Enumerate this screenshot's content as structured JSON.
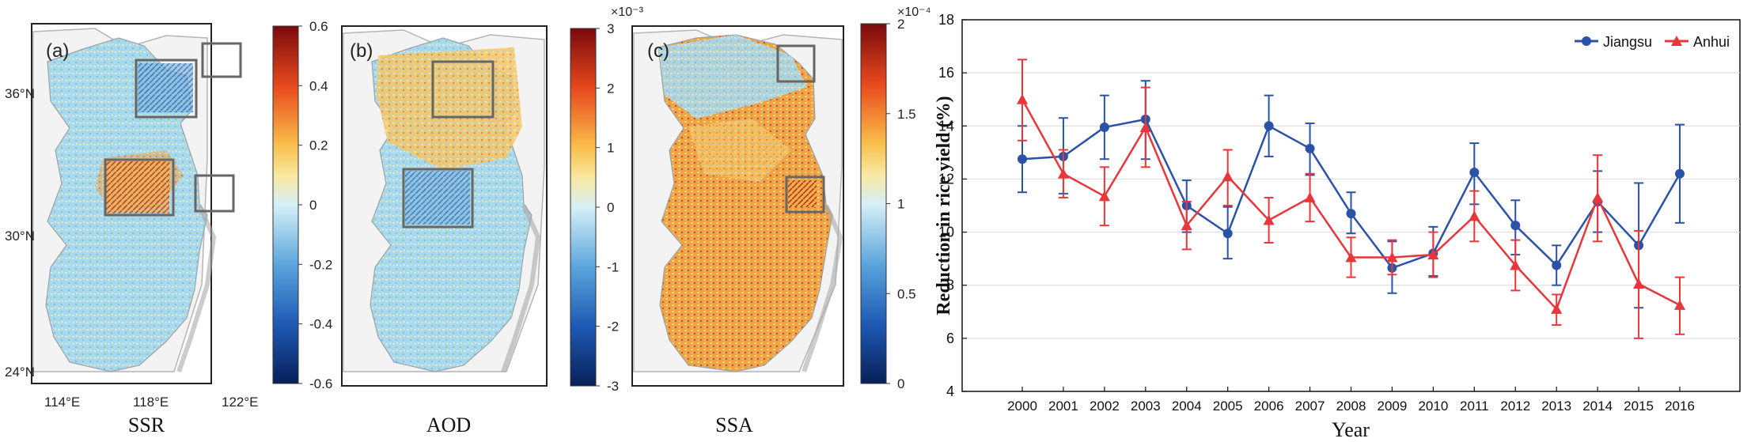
{
  "maps": [
    {
      "panel_label": "(a)",
      "variable": "SSR",
      "colorbar_ticks": [
        "0.6",
        "0.4",
        "0.2",
        "0",
        "-0.2",
        "-0.4",
        "-0.6"
      ],
      "colorbar_multiplier": "",
      "colorbar_range": [
        -0.6,
        0.6
      ],
      "lon_ticks": [
        "114°E",
        "118°E",
        "122°E"
      ],
      "lat_ticks": [
        "36°N",
        "30°N",
        "24°N"
      ]
    },
    {
      "panel_label": "(b)",
      "variable": "AOD",
      "colorbar_ticks": [
        "3",
        "2",
        "1",
        "0",
        "-1",
        "-2",
        "-3"
      ],
      "colorbar_multiplier": "×10⁻³",
      "colorbar_range": [
        -3,
        3
      ]
    },
    {
      "panel_label": "(c)",
      "variable": "SSA",
      "colorbar_ticks": [
        "2",
        "1.5",
        "1",
        "0.5",
        "0"
      ],
      "colorbar_multiplier": "×10⁻⁴",
      "colorbar_range": [
        0,
        2
      ]
    }
  ],
  "colors": {
    "jiangsu": "#2a52a6",
    "anhui": "#e8373b",
    "map_box": "#666666",
    "grid": "#d9d9d9"
  },
  "chart_data": {
    "type": "line",
    "title": "",
    "xlabel": "Year",
    "ylabel": "Reduction in rice yield (%)",
    "x": [
      2000,
      2001,
      2002,
      2003,
      2004,
      2005,
      2006,
      2007,
      2008,
      2009,
      2010,
      2011,
      2012,
      2013,
      2014,
      2015,
      2016
    ],
    "ylim": [
      4,
      18
    ],
    "yticks": [
      4,
      6,
      8,
      10,
      12,
      14,
      16,
      18
    ],
    "grid": "horizontal",
    "legend_position": "top-right",
    "series": [
      {
        "name": "Jiangsu",
        "marker": "circle",
        "values": [
          12.75,
          12.85,
          13.95,
          14.25,
          11.0,
          9.95,
          14.0,
          13.15,
          10.7,
          8.65,
          9.2,
          12.25,
          10.25,
          8.75,
          11.15,
          9.5,
          12.2
        ],
        "err_low": [
          11.5,
          11.45,
          12.75,
          12.75,
          10.0,
          9.0,
          12.85,
          12.15,
          9.95,
          7.7,
          8.35,
          11.05,
          9.15,
          8.0,
          10.0,
          7.15,
          10.35
        ],
        "err_high": [
          14.0,
          14.3,
          15.15,
          15.7,
          11.95,
          10.95,
          15.15,
          14.1,
          11.5,
          9.65,
          10.2,
          13.35,
          11.2,
          9.5,
          12.3,
          11.85,
          14.05
        ]
      },
      {
        "name": "Anhui",
        "marker": "triangle",
        "values": [
          15.0,
          12.2,
          11.35,
          13.95,
          10.25,
          12.1,
          10.45,
          11.3,
          9.05,
          9.05,
          9.15,
          10.6,
          8.75,
          7.1,
          11.3,
          8.05,
          7.25
        ],
        "err_low": [
          13.45,
          11.3,
          10.25,
          12.45,
          9.35,
          11.0,
          9.6,
          10.4,
          8.3,
          8.4,
          8.3,
          9.65,
          7.8,
          6.5,
          9.65,
          6.0,
          6.15
        ],
        "err_high": [
          16.5,
          13.1,
          12.45,
          15.45,
          11.15,
          13.1,
          11.3,
          12.2,
          9.8,
          9.7,
          10.0,
          11.55,
          9.7,
          7.65,
          12.9,
          10.05,
          8.3
        ]
      }
    ]
  }
}
